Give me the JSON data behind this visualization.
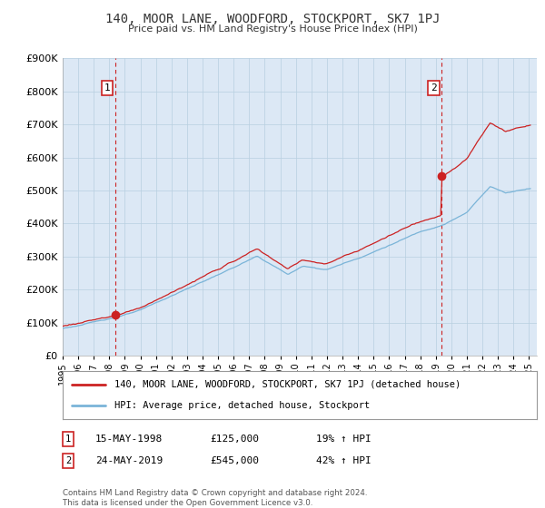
{
  "title": "140, MOOR LANE, WOODFORD, STOCKPORT, SK7 1PJ",
  "subtitle": "Price paid vs. HM Land Registry's House Price Index (HPI)",
  "legend_line1": "140, MOOR LANE, WOODFORD, STOCKPORT, SK7 1PJ (detached house)",
  "legend_line2": "HPI: Average price, detached house, Stockport",
  "sale1_date": "15-MAY-1998",
  "sale1_price": "£125,000",
  "sale1_hpi": "19% ↑ HPI",
  "sale2_date": "24-MAY-2019",
  "sale2_price": "£545,000",
  "sale2_hpi": "42% ↑ HPI",
  "footer": "Contains HM Land Registry data © Crown copyright and database right 2024.\nThis data is licensed under the Open Government Licence v3.0.",
  "ylim": [
    0,
    900000
  ],
  "yticks": [
    0,
    100000,
    200000,
    300000,
    400000,
    500000,
    600000,
    700000,
    800000,
    900000
  ],
  "hpi_color": "#7ab4d8",
  "price_color": "#cc2222",
  "sale_vline_color": "#cc2222",
  "plot_bg_color": "#dce8f5",
  "background_color": "#ffffff",
  "grid_color": "#b8cfe0"
}
